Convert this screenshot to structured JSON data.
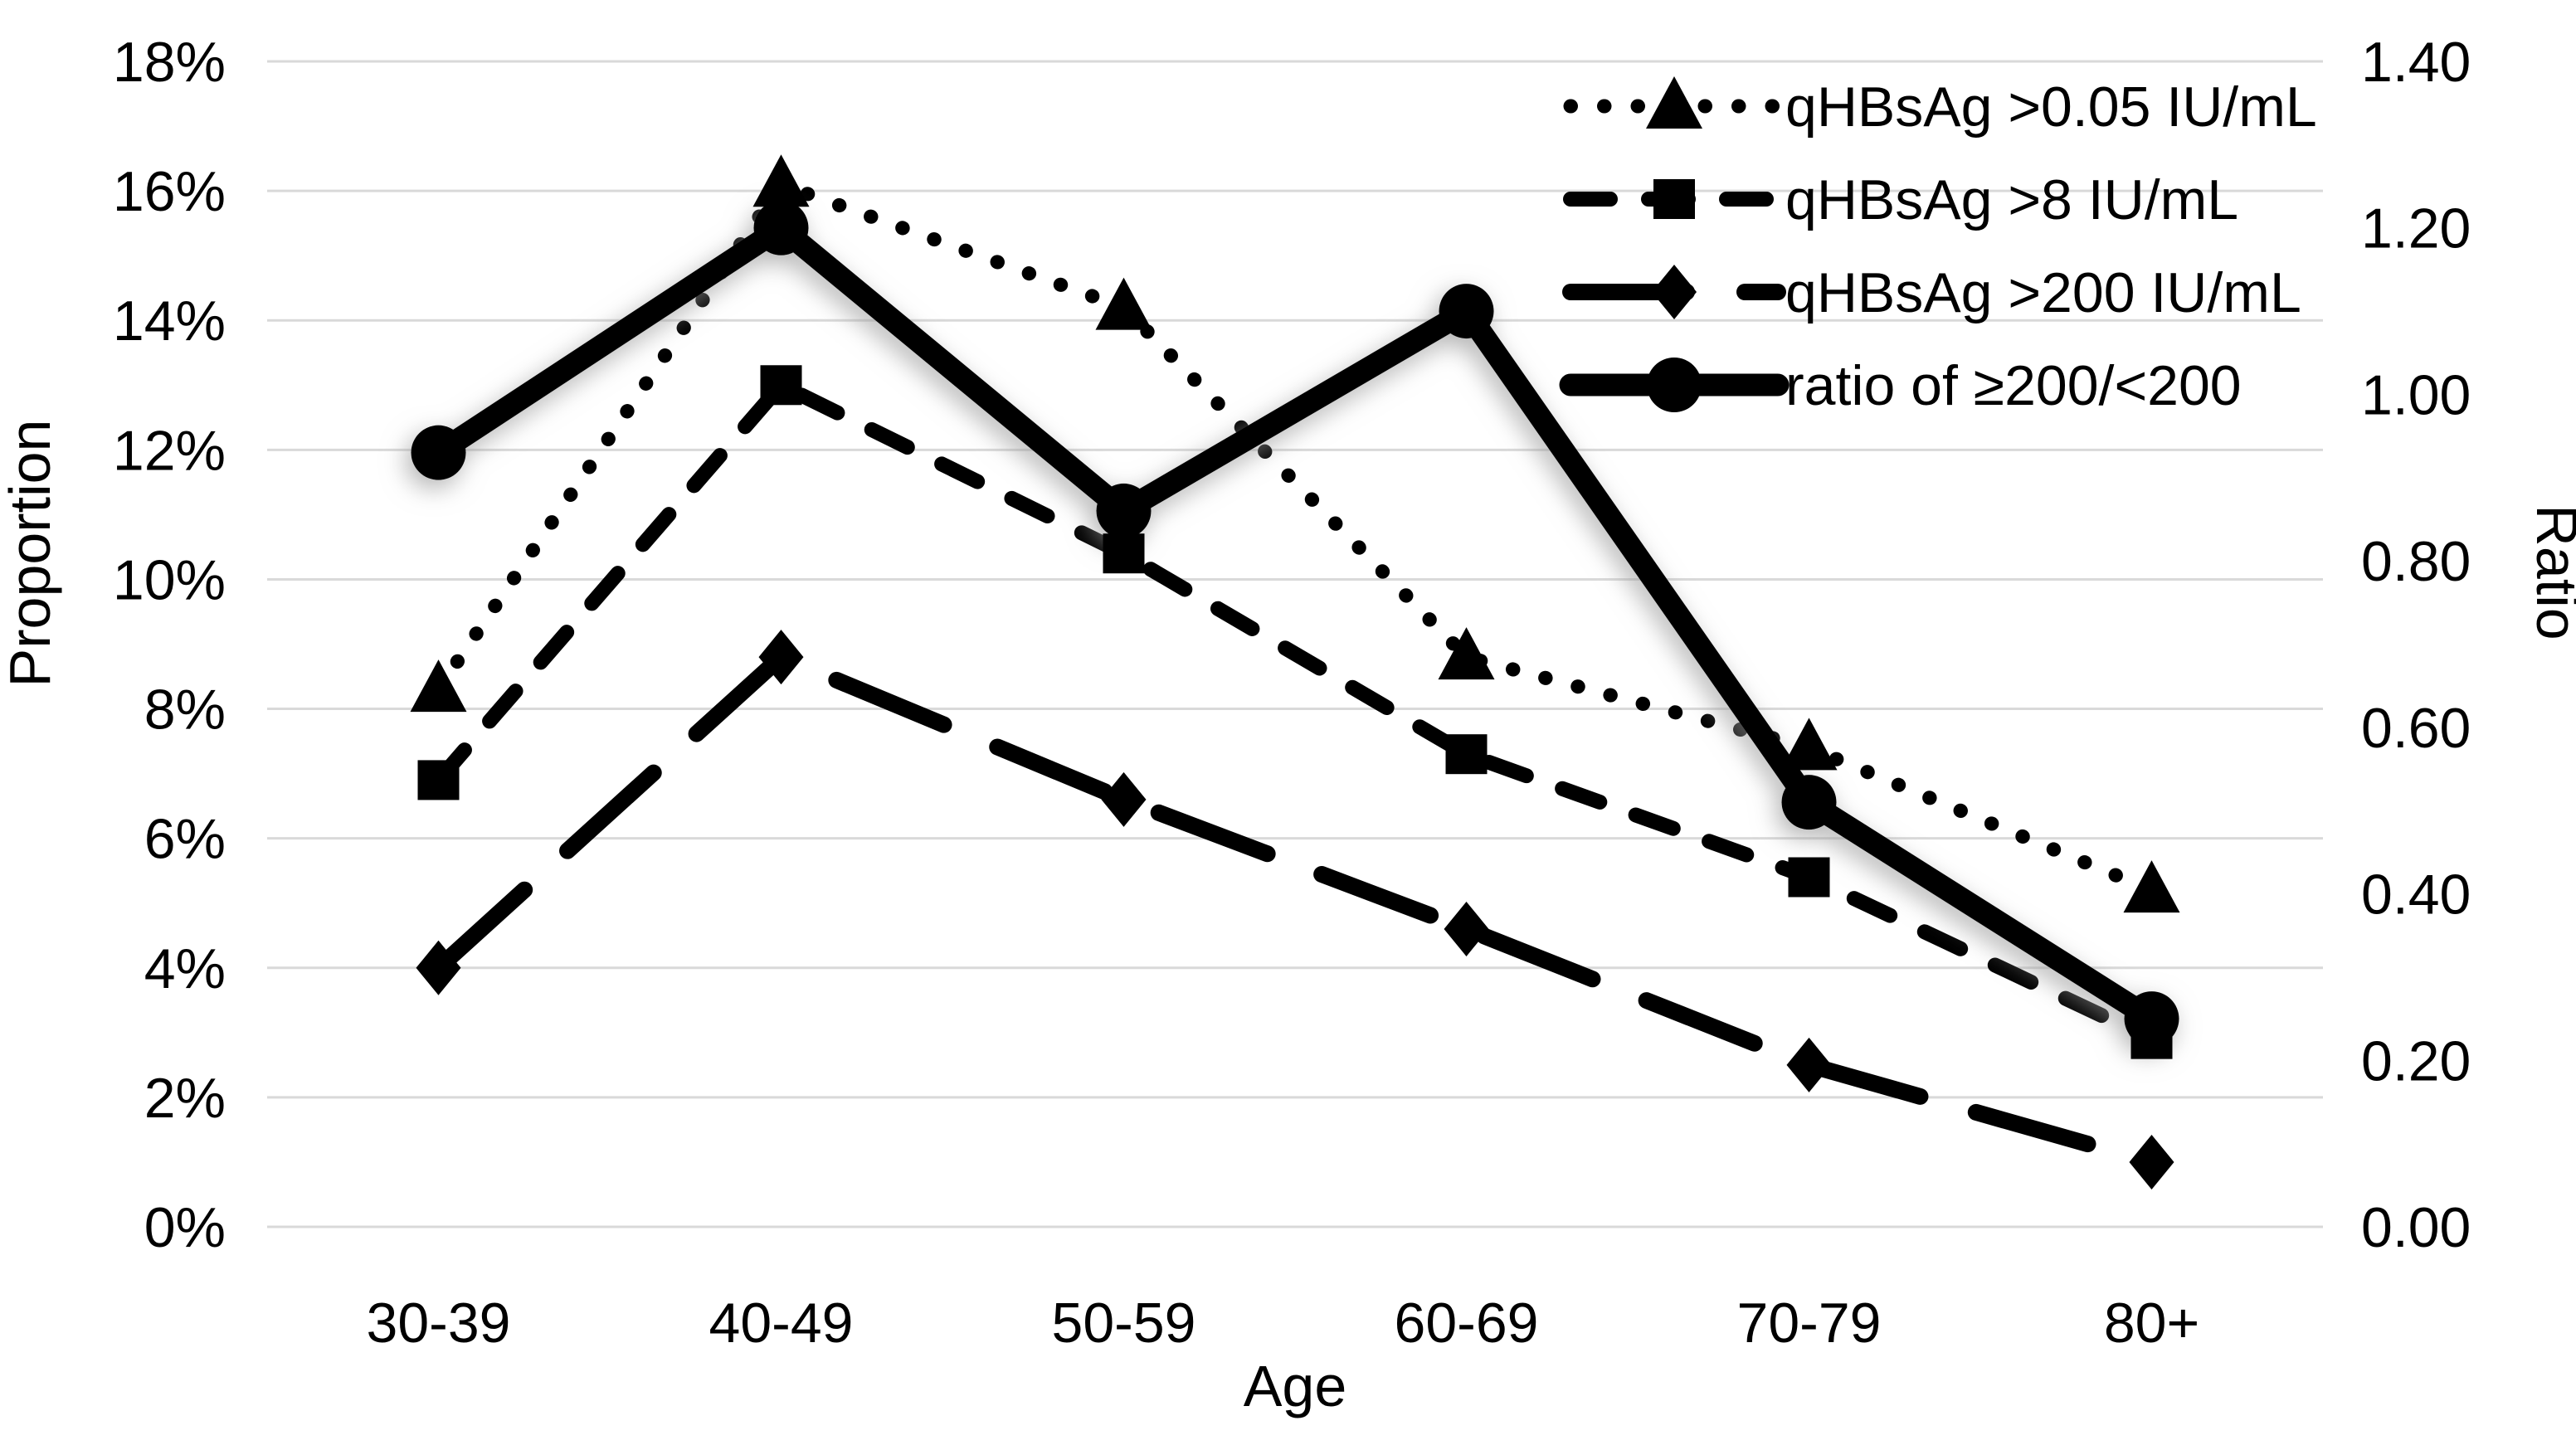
{
  "chart_data": {
    "type": "line",
    "title": "",
    "categories": [
      "30-39",
      "40-49",
      "50-59",
      "60-69",
      "70-79",
      "80+"
    ],
    "xlabel": "Age",
    "ylabel_left": "Proportion",
    "ylabel_right": "Ratio",
    "y_left_axis": {
      "min": 0,
      "max": 18,
      "step": 2,
      "unit": "%"
    },
    "y_right_axis": {
      "min": 0.0,
      "max": 1.4,
      "step": 0.2
    },
    "left_ticks": [
      "18%",
      "16%",
      "14%",
      "12%",
      "10%",
      "8%",
      "6%",
      "4%",
      "2%",
      "0%"
    ],
    "right_ticks": [
      "1.40",
      "1.20",
      "1.00",
      "0.80",
      "0.60",
      "0.40",
      "0.20",
      "0.00"
    ],
    "grid": true,
    "legend_position": "top-right",
    "series": [
      {
        "name": "qHBsAg >0.05 IU/mL",
        "axis": "left",
        "marker": "triangle",
        "line_style": "dotted",
        "values": [
          8.3,
          16.1,
          14.2,
          8.8,
          7.4,
          5.2
        ]
      },
      {
        "name": "qHBsAg >8 IU/mL",
        "axis": "left",
        "marker": "square",
        "line_style": "dashed",
        "values": [
          6.9,
          13.0,
          10.4,
          7.3,
          5.4,
          2.9
        ]
      },
      {
        "name": "qHBsAg >200 IU/mL",
        "axis": "left",
        "marker": "diamond",
        "line_style": "long-dash",
        "values": [
          4.0,
          8.8,
          6.6,
          4.6,
          2.5,
          1.0
        ]
      },
      {
        "name": "ratio of ≥200/<200",
        "axis": "right",
        "marker": "circle",
        "line_style": "solid",
        "shadow": true,
        "values": [
          0.93,
          1.2,
          0.86,
          1.1,
          0.51,
          0.25
        ]
      }
    ],
    "colors": {
      "series": "#000000",
      "gridline": "#d9d9d9",
      "background": "#ffffff",
      "shadow": "#9a9a9a"
    }
  }
}
